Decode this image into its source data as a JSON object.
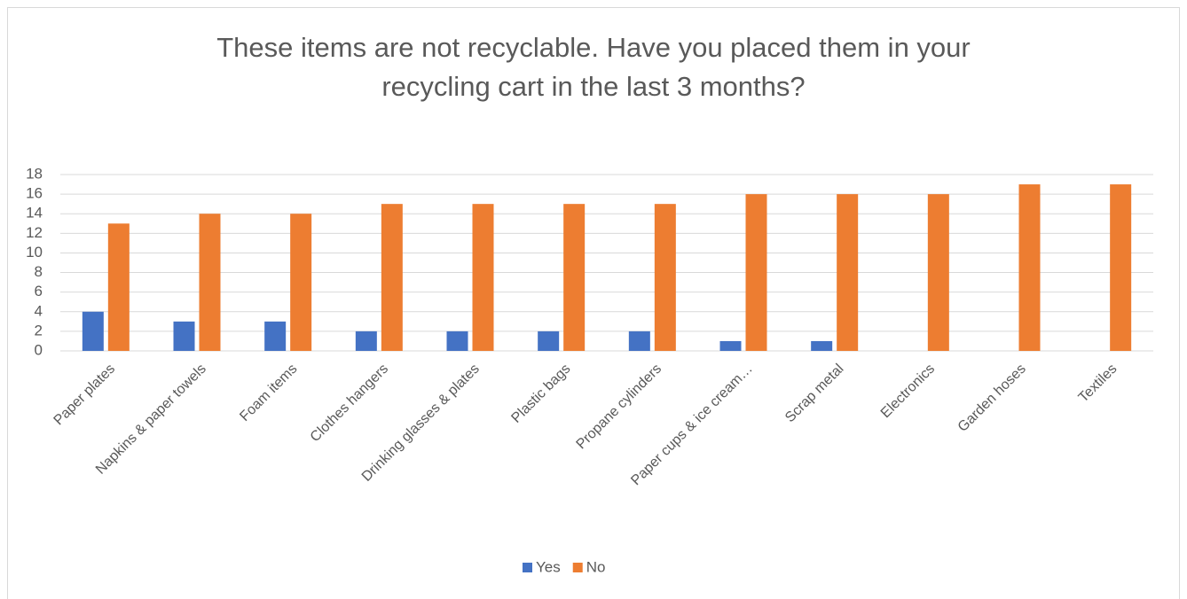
{
  "chart_data": {
    "type": "bar",
    "title": "These items are not recyclable. Have you placed them in your recycling cart in the last 3 months?",
    "categories": [
      "Paper plates",
      "Napkins & paper towels",
      "Foam items",
      "Clothes hangers",
      "Drinking glasses & plates",
      "Plastic bags",
      "Propane cylinders",
      "Paper cups & ice cream…",
      "Scrap metal",
      "Electronics",
      "Garden hoses",
      "Textiles"
    ],
    "series": [
      {
        "name": "Yes",
        "color": "#4472c4",
        "values": [
          4,
          3,
          3,
          2,
          2,
          2,
          2,
          1,
          1,
          0,
          0,
          0
        ]
      },
      {
        "name": "No",
        "color": "#ed7d31",
        "values": [
          13,
          14,
          14,
          15,
          15,
          15,
          15,
          16,
          16,
          16,
          17,
          17
        ]
      }
    ],
    "ylim": [
      0,
      18
    ],
    "yticks": [
      0,
      2,
      4,
      6,
      8,
      10,
      12,
      14,
      16,
      18
    ],
    "grid": true,
    "legend": "bottom"
  }
}
